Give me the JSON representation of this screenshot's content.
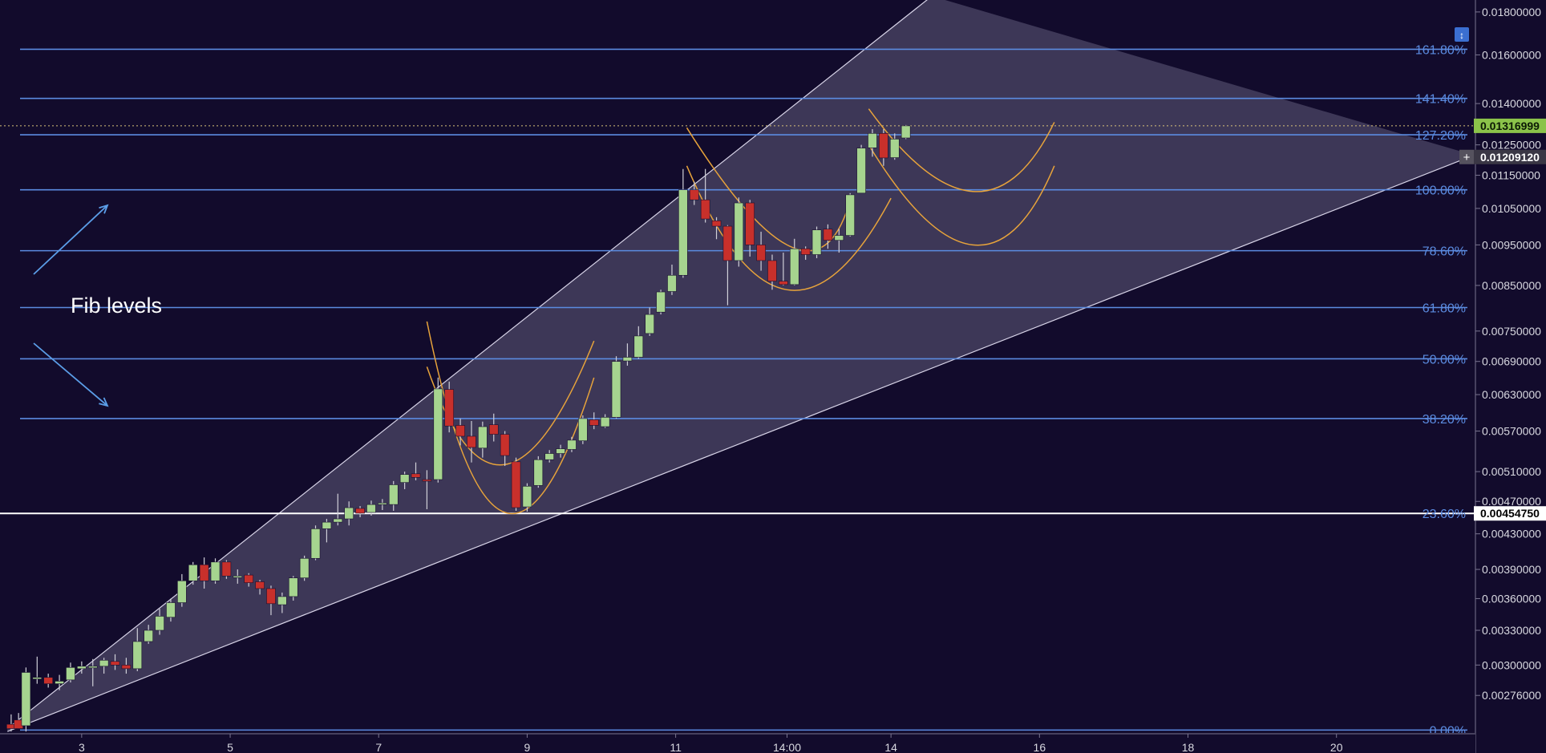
{
  "chart_data": {
    "type": "candlestick",
    "colors": {
      "background": "#120b2c",
      "bull": "#a6d48f",
      "bear": "#c8302b",
      "fib_line": "#5b8be0",
      "channel_fill": "#8f8aa8",
      "curve": "#e7a33b",
      "current_price_badge": "#8bc34a"
    },
    "y_ticks": [
      "0.01800000",
      "0.01600000",
      "0.01400000",
      "0.01250000",
      "0.01150000",
      "0.01050000",
      "0.00950000",
      "0.00850000",
      "0.00750000",
      "0.00690000",
      "0.00630000",
      "0.00570000",
      "0.00510000",
      "0.00470000",
      "0.00430000",
      "0.00390000",
      "0.00360000",
      "0.00330000",
      "0.00300000",
      "0.00276000"
    ],
    "x_ticks": [
      "3",
      "5",
      "7",
      "9",
      "11",
      "14:00",
      "14",
      "16",
      "18",
      "20"
    ],
    "price_labels": {
      "last": "0.01316999",
      "cursor": "0.01209120",
      "line": "0.00454750"
    },
    "fib_levels": [
      {
        "label": "161.80%",
        "price": 0.01625
      },
      {
        "label": "141.40%",
        "price": 0.0142
      },
      {
        "label": "127.20%",
        "price": 0.01285
      },
      {
        "label": "100.00%",
        "price": 0.01105
      },
      {
        "label": "78.60%",
        "price": 0.00935
      },
      {
        "label": "61.80%",
        "price": 0.008
      },
      {
        "label": "50.00%",
        "price": 0.00695
      },
      {
        "label": "38.20%",
        "price": 0.0059
      },
      {
        "label": "23.60%",
        "price": 0.0045475
      },
      {
        "label": "0.00%",
        "price": 0.00251
      }
    ],
    "candles": [
      {
        "t": 0.05,
        "o": 0.00255,
        "h": 0.00262,
        "l": 0.0025,
        "c": 0.00252
      },
      {
        "t": 0.15,
        "o": 0.00258,
        "h": 0.00263,
        "l": 0.00252,
        "c": 0.00252
      },
      {
        "t": 0.25,
        "o": 0.00254,
        "h": 0.00298,
        "l": 0.0025,
        "c": 0.00294
      },
      {
        "t": 0.4,
        "o": 0.0029,
        "h": 0.00307,
        "l": 0.00285,
        "c": 0.0029
      },
      {
        "t": 0.55,
        "o": 0.0029,
        "h": 0.00293,
        "l": 0.00282,
        "c": 0.00285
      },
      {
        "t": 0.7,
        "o": 0.00285,
        "h": 0.00292,
        "l": 0.0028,
        "c": 0.00287
      },
      {
        "t": 0.85,
        "o": 0.00288,
        "h": 0.00302,
        "l": 0.00286,
        "c": 0.00298
      },
      {
        "t": 1.0,
        "o": 0.00297,
        "h": 0.00303,
        "l": 0.00293,
        "c": 0.00299
      },
      {
        "t": 1.15,
        "o": 0.00298,
        "h": 0.00305,
        "l": 0.00283,
        "c": 0.00299
      },
      {
        "t": 1.3,
        "o": 0.00299,
        "h": 0.00306,
        "l": 0.00293,
        "c": 0.00304
      },
      {
        "t": 1.45,
        "o": 0.00303,
        "h": 0.00309,
        "l": 0.00296,
        "c": 0.003
      },
      {
        "t": 1.6,
        "o": 0.003,
        "h": 0.00306,
        "l": 0.00293,
        "c": 0.00297
      },
      {
        "t": 1.75,
        "o": 0.00297,
        "h": 0.00332,
        "l": 0.00295,
        "c": 0.0032
      },
      {
        "t": 1.9,
        "o": 0.0032,
        "h": 0.00335,
        "l": 0.00318,
        "c": 0.0033
      },
      {
        "t": 2.05,
        "o": 0.0033,
        "h": 0.0035,
        "l": 0.00326,
        "c": 0.00343
      },
      {
        "t": 2.2,
        "o": 0.00342,
        "h": 0.0036,
        "l": 0.00338,
        "c": 0.00356
      },
      {
        "t": 2.35,
        "o": 0.00356,
        "h": 0.00385,
        "l": 0.00352,
        "c": 0.00378
      },
      {
        "t": 2.5,
        "o": 0.00378,
        "h": 0.00398,
        "l": 0.00374,
        "c": 0.00395
      },
      {
        "t": 2.65,
        "o": 0.00395,
        "h": 0.00403,
        "l": 0.0037,
        "c": 0.00378
      },
      {
        "t": 2.8,
        "o": 0.00378,
        "h": 0.00402,
        "l": 0.00375,
        "c": 0.00398
      },
      {
        "t": 2.95,
        "o": 0.00398,
        "h": 0.004,
        "l": 0.0038,
        "c": 0.00383
      },
      {
        "t": 3.1,
        "o": 0.00383,
        "h": 0.0039,
        "l": 0.00375,
        "c": 0.00383
      },
      {
        "t": 3.25,
        "o": 0.00384,
        "h": 0.00386,
        "l": 0.00372,
        "c": 0.00376
      },
      {
        "t": 3.4,
        "o": 0.00377,
        "h": 0.00379,
        "l": 0.00364,
        "c": 0.0037
      },
      {
        "t": 3.55,
        "o": 0.0037,
        "h": 0.00373,
        "l": 0.00344,
        "c": 0.00355
      },
      {
        "t": 3.7,
        "o": 0.00354,
        "h": 0.00366,
        "l": 0.00346,
        "c": 0.00362
      },
      {
        "t": 3.85,
        "o": 0.00362,
        "h": 0.00383,
        "l": 0.00358,
        "c": 0.00381
      },
      {
        "t": 4.0,
        "o": 0.00381,
        "h": 0.00405,
        "l": 0.00378,
        "c": 0.00402
      },
      {
        "t": 4.15,
        "o": 0.00402,
        "h": 0.0044,
        "l": 0.004,
        "c": 0.00436
      },
      {
        "t": 4.3,
        "o": 0.00436,
        "h": 0.00448,
        "l": 0.0042,
        "c": 0.00444
      },
      {
        "t": 4.45,
        "o": 0.00444,
        "h": 0.0048,
        "l": 0.0044,
        "c": 0.00448
      },
      {
        "t": 4.6,
        "o": 0.00448,
        "h": 0.0047,
        "l": 0.0044,
        "c": 0.00462
      },
      {
        "t": 4.75,
        "o": 0.00461,
        "h": 0.00464,
        "l": 0.0045,
        "c": 0.00455
      },
      {
        "t": 4.9,
        "o": 0.00456,
        "h": 0.00471,
        "l": 0.00452,
        "c": 0.00466
      },
      {
        "t": 5.05,
        "o": 0.00467,
        "h": 0.00473,
        "l": 0.00459,
        "c": 0.00468
      },
      {
        "t": 5.2,
        "o": 0.00466,
        "h": 0.00497,
        "l": 0.00458,
        "c": 0.00492
      },
      {
        "t": 5.35,
        "o": 0.00495,
        "h": 0.0051,
        "l": 0.00486,
        "c": 0.00506
      },
      {
        "t": 5.5,
        "o": 0.00507,
        "h": 0.00523,
        "l": 0.00498,
        "c": 0.00502
      },
      {
        "t": 5.65,
        "o": 0.00499,
        "h": 0.00512,
        "l": 0.0046,
        "c": 0.00498
      },
      {
        "t": 5.8,
        "o": 0.00499,
        "h": 0.0066,
        "l": 0.00495,
        "c": 0.0064
      },
      {
        "t": 5.95,
        "o": 0.00639,
        "h": 0.00653,
        "l": 0.00568,
        "c": 0.00578
      },
      {
        "t": 6.1,
        "o": 0.00579,
        "h": 0.0059,
        "l": 0.00548,
        "c": 0.00562
      },
      {
        "t": 6.25,
        "o": 0.00562,
        "h": 0.00586,
        "l": 0.00523,
        "c": 0.00545
      },
      {
        "t": 6.4,
        "o": 0.00544,
        "h": 0.00585,
        "l": 0.0053,
        "c": 0.00577
      },
      {
        "t": 6.55,
        "o": 0.0058,
        "h": 0.00598,
        "l": 0.00554,
        "c": 0.00565
      },
      {
        "t": 6.7,
        "o": 0.00565,
        "h": 0.0057,
        "l": 0.00518,
        "c": 0.00533
      },
      {
        "t": 6.85,
        "o": 0.00524,
        "h": 0.0053,
        "l": 0.00458,
        "c": 0.00462
      },
      {
        "t": 7.0,
        "o": 0.00463,
        "h": 0.00494,
        "l": 0.00457,
        "c": 0.0049
      },
      {
        "t": 7.15,
        "o": 0.00491,
        "h": 0.00532,
        "l": 0.00488,
        "c": 0.00527
      },
      {
        "t": 7.3,
        "o": 0.00527,
        "h": 0.00541,
        "l": 0.00523,
        "c": 0.00536
      },
      {
        "t": 7.45,
        "o": 0.00536,
        "h": 0.00549,
        "l": 0.0053,
        "c": 0.00543
      },
      {
        "t": 7.6,
        "o": 0.00542,
        "h": 0.00561,
        "l": 0.00538,
        "c": 0.00556
      },
      {
        "t": 7.75,
        "o": 0.00555,
        "h": 0.00595,
        "l": 0.0055,
        "c": 0.0059
      },
      {
        "t": 7.9,
        "o": 0.00588,
        "h": 0.006,
        "l": 0.00573,
        "c": 0.00579
      },
      {
        "t": 8.05,
        "o": 0.00577,
        "h": 0.00597,
        "l": 0.00575,
        "c": 0.00592
      },
      {
        "t": 8.2,
        "o": 0.00592,
        "h": 0.007,
        "l": 0.0059,
        "c": 0.0069
      },
      {
        "t": 8.35,
        "o": 0.00691,
        "h": 0.00725,
        "l": 0.00682,
        "c": 0.00698
      },
      {
        "t": 8.5,
        "o": 0.00698,
        "h": 0.0076,
        "l": 0.00695,
        "c": 0.0074
      },
      {
        "t": 8.65,
        "o": 0.00745,
        "h": 0.008,
        "l": 0.0074,
        "c": 0.00785
      },
      {
        "t": 8.8,
        "o": 0.0079,
        "h": 0.0084,
        "l": 0.00785,
        "c": 0.00835
      },
      {
        "t": 8.95,
        "o": 0.00836,
        "h": 0.009,
        "l": 0.00828,
        "c": 0.00874
      },
      {
        "t": 9.1,
        "o": 0.00874,
        "h": 0.0117,
        "l": 0.00868,
        "c": 0.01105
      },
      {
        "t": 9.25,
        "o": 0.01105,
        "h": 0.0113,
        "l": 0.0106,
        "c": 0.01075
      },
      {
        "t": 9.4,
        "o": 0.01075,
        "h": 0.0117,
        "l": 0.0101,
        "c": 0.0102
      },
      {
        "t": 9.55,
        "o": 0.01015,
        "h": 0.01025,
        "l": 0.00965,
        "c": 0.01
      },
      {
        "t": 9.7,
        "o": 0.01,
        "h": 0.01003,
        "l": 0.00805,
        "c": 0.0091
      },
      {
        "t": 9.85,
        "o": 0.0091,
        "h": 0.01082,
        "l": 0.00895,
        "c": 0.01066
      },
      {
        "t": 10.0,
        "o": 0.01066,
        "h": 0.01075,
        "l": 0.0092,
        "c": 0.0095
      },
      {
        "t": 10.15,
        "o": 0.0095,
        "h": 0.00985,
        "l": 0.00885,
        "c": 0.0091
      },
      {
        "t": 10.3,
        "o": 0.0091,
        "h": 0.00925,
        "l": 0.0084,
        "c": 0.0086
      },
      {
        "t": 10.45,
        "o": 0.0086,
        "h": 0.0093,
        "l": 0.0085,
        "c": 0.00852
      },
      {
        "t": 10.6,
        "o": 0.00852,
        "h": 0.00966,
        "l": 0.0085,
        "c": 0.0094
      },
      {
        "t": 10.75,
        "o": 0.0094,
        "h": 0.00946,
        "l": 0.00912,
        "c": 0.00925
      },
      {
        "t": 10.9,
        "o": 0.00925,
        "h": 0.00999,
        "l": 0.00916,
        "c": 0.0099
      },
      {
        "t": 11.05,
        "o": 0.00992,
        "h": 0.01005,
        "l": 0.0094,
        "c": 0.00962
      },
      {
        "t": 11.2,
        "o": 0.00962,
        "h": 0.00993,
        "l": 0.0093,
        "c": 0.00975
      },
      {
        "t": 11.35,
        "o": 0.00975,
        "h": 0.01095,
        "l": 0.00972,
        "c": 0.0109
      },
      {
        "t": 11.5,
        "o": 0.01095,
        "h": 0.0125,
        "l": 0.01095,
        "c": 0.01239
      },
      {
        "t": 11.65,
        "o": 0.0124,
        "h": 0.01305,
        "l": 0.0121,
        "c": 0.0129
      },
      {
        "t": 11.8,
        "o": 0.0129,
        "h": 0.01305,
        "l": 0.0118,
        "c": 0.01206
      },
      {
        "t": 11.95,
        "o": 0.01207,
        "h": 0.0129,
        "l": 0.012,
        "c": 0.0127
      },
      {
        "t": 12.1,
        "o": 0.01274,
        "h": 0.0132,
        "l": 0.0127,
        "c": 0.01317
      }
    ],
    "x_range": [
      -0.1,
      19.75
    ],
    "y_range_log": [
      0.00249,
      0.0186
    ],
    "channel": {
      "upper": [
        [
          0.0,
          0.00252
        ],
        [
          12.45,
          0.0188
        ]
      ],
      "lower": [
        [
          0.0,
          0.0025
        ],
        [
          19.75,
          0.01215
        ]
      ]
    },
    "curves": [
      {
        "start": [
          5.65,
          0.0077
        ],
        "mid": [
          6.7,
          0.00456
        ],
        "end": [
          7.9,
          0.0066
        ]
      },
      {
        "start": [
          5.65,
          0.0068
        ],
        "mid": [
          6.7,
          0.0052
        ],
        "end": [
          7.9,
          0.0073
        ]
      },
      {
        "start": [
          9.15,
          0.0131
        ],
        "mid": [
          10.5,
          0.0095
        ],
        "end": [
          11.3,
          0.0104
        ]
      },
      {
        "start": [
          9.15,
          0.0118
        ],
        "mid": [
          10.5,
          0.0084
        ],
        "end": [
          11.9,
          0.0108
        ]
      },
      {
        "start": [
          11.6,
          0.0138
        ],
        "mid": [
          13.0,
          0.011
        ],
        "end": [
          14.1,
          0.0133
        ]
      },
      {
        "start": [
          11.6,
          0.0125
        ],
        "mid": [
          13.0,
          0.0095
        ],
        "end": [
          14.1,
          0.0118
        ]
      }
    ],
    "annotations": {
      "label": "Fib levels"
    }
  }
}
